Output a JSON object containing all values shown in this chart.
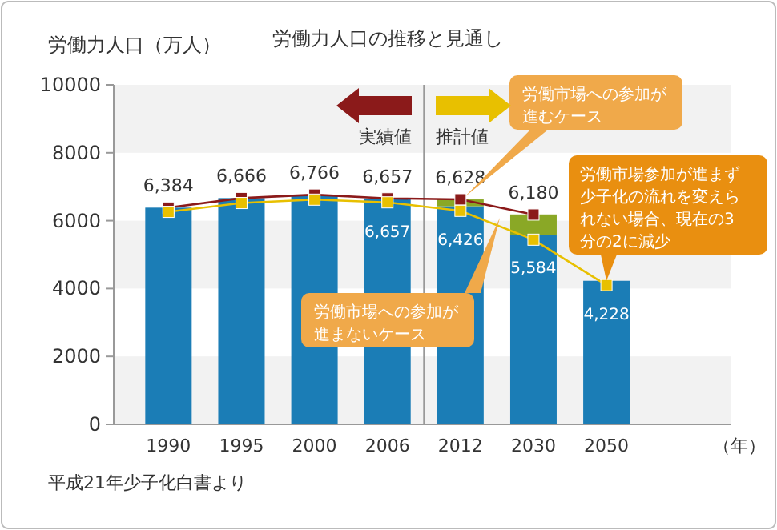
{
  "chart_data": {
    "type": "bar",
    "title": "労働力人口の推移と見通し",
    "ylabel": "労働力人口（万人）",
    "xlabel": "（年）",
    "categories": [
      "1990",
      "1995",
      "2000",
      "2006",
      "2012",
      "2030",
      "2050"
    ],
    "ylim": [
      0,
      10000
    ],
    "yticks": [
      0,
      2000,
      4000,
      6000,
      8000,
      10000
    ],
    "stacked": true,
    "bands": [
      {
        "axis": "y",
        "from": 0,
        "to": 2000,
        "color": "#f2f2f2"
      },
      {
        "axis": "y",
        "from": 4000,
        "to": 6000,
        "color": "#f2f2f2"
      },
      {
        "axis": "y",
        "from": 8000,
        "to": 10000,
        "color": "#f2f2f2"
      }
    ],
    "series": [
      {
        "color": "#1b7db6",
        "values": [
          6384,
          6666,
          6766,
          6657,
          6426,
          5584,
          4228
        ],
        "value_labels": [
          null,
          null,
          null,
          "6,657",
          "6,426",
          "5,584",
          "4,228"
        ]
      },
      {
        "color": "#8aa826",
        "values": [
          null,
          null,
          null,
          null,
          200,
          600,
          null
        ]
      },
      {
        "type": "line",
        "color": "#8b1a1a",
        "marker": "square",
        "values": [
          6384,
          6666,
          6766,
          6657,
          6628,
          6180,
          null
        ],
        "value_labels": [
          "6,384",
          "6,666",
          "6,766",
          "6,657",
          "6,628",
          "6,180",
          null
        ]
      },
      {
        "type": "line",
        "color": "#e8c000",
        "marker": "square",
        "values": [
          6260,
          6520,
          6620,
          6540,
          6290,
          5440,
          4100
        ]
      }
    ],
    "annotations": [
      "実績値",
      "推計値",
      "労働市場への参加が進むケース",
      {
        "text": "労働市場参加が進まず少子化の流れを変えられない場合、現在の3分の2に減少",
        "x": "2050",
        "y": 4228
      },
      "労働市場への参加が進まないケース",
      "平成21年少子化白書より"
    ]
  }
}
